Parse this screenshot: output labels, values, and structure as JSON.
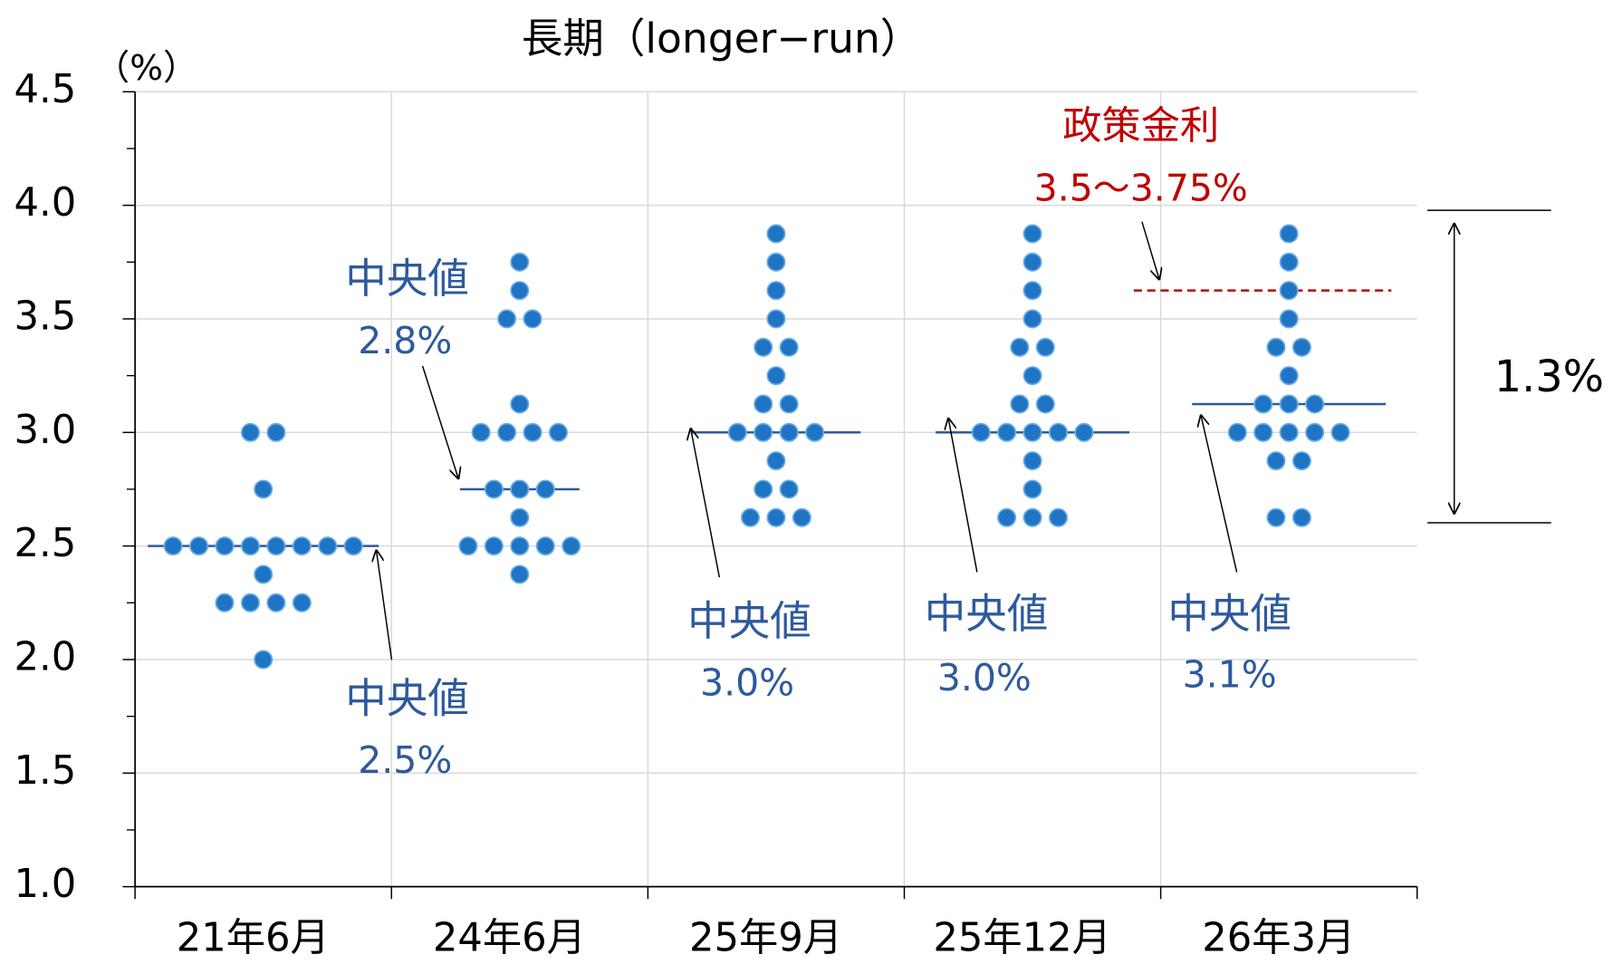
{
  "chart_data": {
    "type": "dot",
    "title": "長期（longer−run）",
    "ylabel": "（%）",
    "categories": [
      "21年6月",
      "24年6月",
      "25年9月",
      "25年12月",
      "26年3月"
    ],
    "values": [
      [
        3.0,
        3.0,
        2.75,
        2.5,
        2.5,
        2.5,
        2.5,
        2.5,
        2.5,
        2.5,
        2.5,
        2.375,
        2.25,
        2.25,
        2.25,
        2.25,
        2.0
      ],
      [
        3.75,
        3.625,
        3.5,
        3.5,
        3.125,
        3.0,
        3.0,
        3.0,
        3.0,
        2.75,
        2.75,
        2.75,
        2.625,
        2.5,
        2.5,
        2.5,
        2.5,
        2.5,
        2.375
      ],
      [
        3.875,
        3.75,
        3.625,
        3.5,
        3.375,
        3.375,
        3.25,
        3.125,
        3.125,
        3.0,
        3.0,
        3.0,
        3.0,
        2.875,
        2.75,
        2.75,
        2.625,
        2.625,
        2.625
      ],
      [
        3.875,
        3.75,
        3.625,
        3.5,
        3.375,
        3.375,
        3.25,
        3.125,
        3.125,
        3.0,
        3.0,
        3.0,
        3.0,
        3.0,
        2.875,
        2.75,
        2.625,
        2.625,
        2.625
      ],
      [
        3.875,
        3.75,
        3.625,
        3.5,
        3.375,
        3.375,
        3.25,
        3.125,
        3.125,
        3.125,
        3.0,
        3.0,
        3.0,
        3.0,
        3.0,
        2.875,
        2.875,
        2.625,
        2.625
      ]
    ],
    "color": "#1f74c4",
    "medians": {
      "label": "中央値",
      "values": [
        2.5,
        2.75,
        3.0,
        3.0,
        3.125
      ],
      "value_labels": [
        "2.5%",
        "2.8%",
        "3.0%",
        "3.0%",
        "3.1%"
      ],
      "color": "#2e5a9c"
    },
    "policy_rate": {
      "label": "政策金利",
      "range_label": "3.5～3.75%",
      "value": 3.625,
      "color": "#c00000"
    },
    "range_annotation": "1.3%",
    "ylim": [
      1.0,
      4.5
    ],
    "yticks": [
      {
        "value": 1.0,
        "label": "1.0"
      },
      {
        "value": 1.5,
        "label": "1.5"
      },
      {
        "value": 2.0,
        "label": "2.0"
      },
      {
        "value": 2.5,
        "label": "2.5"
      },
      {
        "value": 3.0,
        "label": "3.0"
      },
      {
        "value": 3.5,
        "label": "3.5"
      },
      {
        "value": 4.0,
        "label": "4.0"
      },
      {
        "value": 4.5,
        "label": "4.5"
      }
    ],
    "minor_yticks": [
      1.25,
      1.75,
      2.25,
      2.75,
      3.25,
      3.75,
      4.25
    ],
    "grid": true
  }
}
